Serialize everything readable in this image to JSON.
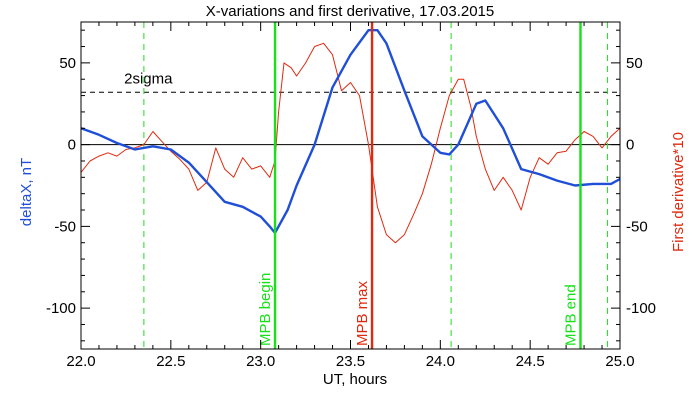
{
  "chart_data": {
    "type": "line",
    "title": "X-variations and first derivative, 17.03.2015",
    "xlabel": "UT, hours",
    "ylabel_left": "deltaX, nT",
    "ylabel_right": "First derivative*10",
    "xlim": [
      22.0,
      25.0
    ],
    "ylim": [
      -125,
      75
    ],
    "x_ticks": [
      "22.0",
      "22.5",
      "23.0",
      "23.5",
      "24.0",
      "24.5",
      "25.0"
    ],
    "y_ticks_left": [
      "50",
      "0",
      "-50",
      "-100"
    ],
    "y_ticks_right": [
      "50",
      "0",
      "-50",
      "-100"
    ],
    "colors": {
      "deltaX": "#1f4fd6",
      "derivative": "#e02a10",
      "markers": "#19e019",
      "max_marker": "#e02a10"
    },
    "series": [
      {
        "name": "deltaX",
        "x": [
          22.0,
          22.05,
          22.1,
          22.2,
          22.3,
          22.4,
          22.5,
          22.6,
          22.7,
          22.8,
          22.9,
          23.0,
          23.05,
          23.08,
          23.15,
          23.2,
          23.3,
          23.4,
          23.5,
          23.6,
          23.65,
          23.7,
          23.8,
          23.9,
          24.0,
          24.05,
          24.1,
          24.2,
          24.25,
          24.35,
          24.45,
          24.55,
          24.65,
          24.75,
          24.85,
          24.95,
          25.0
        ],
        "values": [
          10,
          8,
          6,
          1,
          -3,
          -1,
          -3,
          -11,
          -23,
          -35,
          -38,
          -44,
          -50,
          -54,
          -40,
          -25,
          0,
          35,
          55,
          70,
          70,
          62,
          33,
          5,
          -5,
          -6,
          0,
          25,
          27,
          10,
          -15,
          -18,
          -22,
          -25,
          -24,
          -24,
          -21
        ]
      },
      {
        "name": "First derivative*10",
        "x": [
          22.0,
          22.05,
          22.1,
          22.15,
          22.2,
          22.25,
          22.3,
          22.35,
          22.4,
          22.45,
          22.5,
          22.55,
          22.6,
          22.65,
          22.7,
          22.75,
          22.8,
          22.85,
          22.9,
          22.95,
          23.0,
          23.05,
          23.08,
          23.1,
          23.13,
          23.17,
          23.2,
          23.25,
          23.3,
          23.35,
          23.4,
          23.45,
          23.5,
          23.55,
          23.6,
          23.65,
          23.7,
          23.75,
          23.8,
          23.85,
          23.9,
          23.95,
          24.0,
          24.05,
          24.1,
          24.13,
          24.17,
          24.2,
          24.25,
          24.3,
          24.35,
          24.4,
          24.45,
          24.5,
          24.55,
          24.6,
          24.65,
          24.7,
          24.75,
          24.8,
          24.85,
          24.9,
          24.95,
          25.0
        ],
        "values": [
          -17,
          -10,
          -7,
          -5,
          -7,
          -3,
          -2,
          0,
          8,
          2,
          -4,
          -9,
          -15,
          -28,
          -23,
          -2,
          -15,
          -20,
          -8,
          -15,
          -13,
          -20,
          -10,
          20,
          50,
          47,
          42,
          50,
          60,
          62,
          55,
          33,
          38,
          30,
          0,
          -38,
          -55,
          -60,
          -55,
          -43,
          -30,
          -12,
          10,
          30,
          40,
          40,
          23,
          5,
          -15,
          -28,
          -20,
          -28,
          -40,
          -20,
          -8,
          -12,
          -5,
          -4,
          3,
          8,
          5,
          -2,
          5,
          10
        ]
      }
    ],
    "reference_lines": {
      "zero": 0,
      "two_sigma": 32,
      "two_sigma_label": "2sigma"
    },
    "dashed_vlines": [
      22.35,
      24.06,
      24.93
    ],
    "markers": [
      {
        "label": "MPB begin",
        "x": 23.08
      },
      {
        "label": "MPB max",
        "x": 23.62
      },
      {
        "label": "MPB end",
        "x": 24.78
      }
    ]
  }
}
